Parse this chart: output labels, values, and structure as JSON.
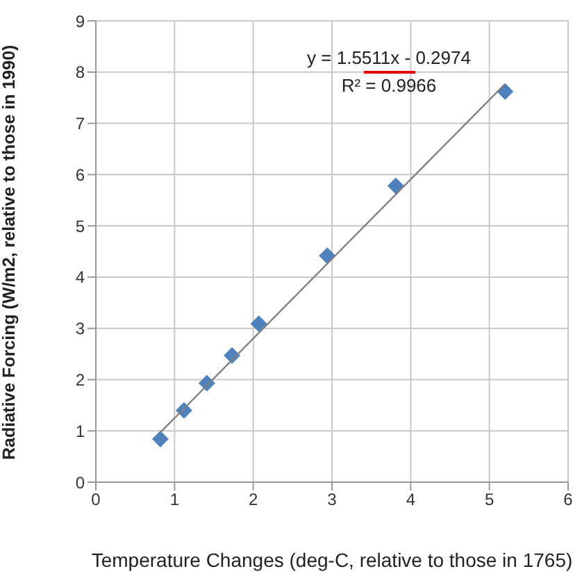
{
  "chart_data": {
    "type": "scatter",
    "xlabel": "Temperature Changes (deg-C, relative to those in 1765)",
    "ylabel": "Radiative Forcing (W/m2, relative to those in 1990)",
    "xlim": [
      0,
      6
    ],
    "xticks": [
      0,
      1,
      2,
      3,
      4,
      5,
      6
    ],
    "ylim": [
      0,
      9
    ],
    "yticks": [
      0,
      1,
      2,
      3,
      4,
      5,
      6,
      7,
      8,
      9
    ],
    "grid": true,
    "series": [
      {
        "type": "scatter",
        "marker": "diamond",
        "color": "#4f81bd",
        "x": [
          0.82,
          1.12,
          1.41,
          1.73,
          2.07,
          2.94,
          3.81,
          5.2
        ],
        "values": [
          0.84,
          1.4,
          1.93,
          2.47,
          3.09,
          4.42,
          5.78,
          7.62
        ]
      },
      {
        "type": "line",
        "marker": "none",
        "color": "#7f7f7f",
        "x": [
          0.82,
          5.2
        ],
        "values": [
          0.97,
          7.77
        ]
      }
    ],
    "annotations": [
      "y = 1.5511x - 0.2974",
      "R² = 0.9966"
    ]
  }
}
